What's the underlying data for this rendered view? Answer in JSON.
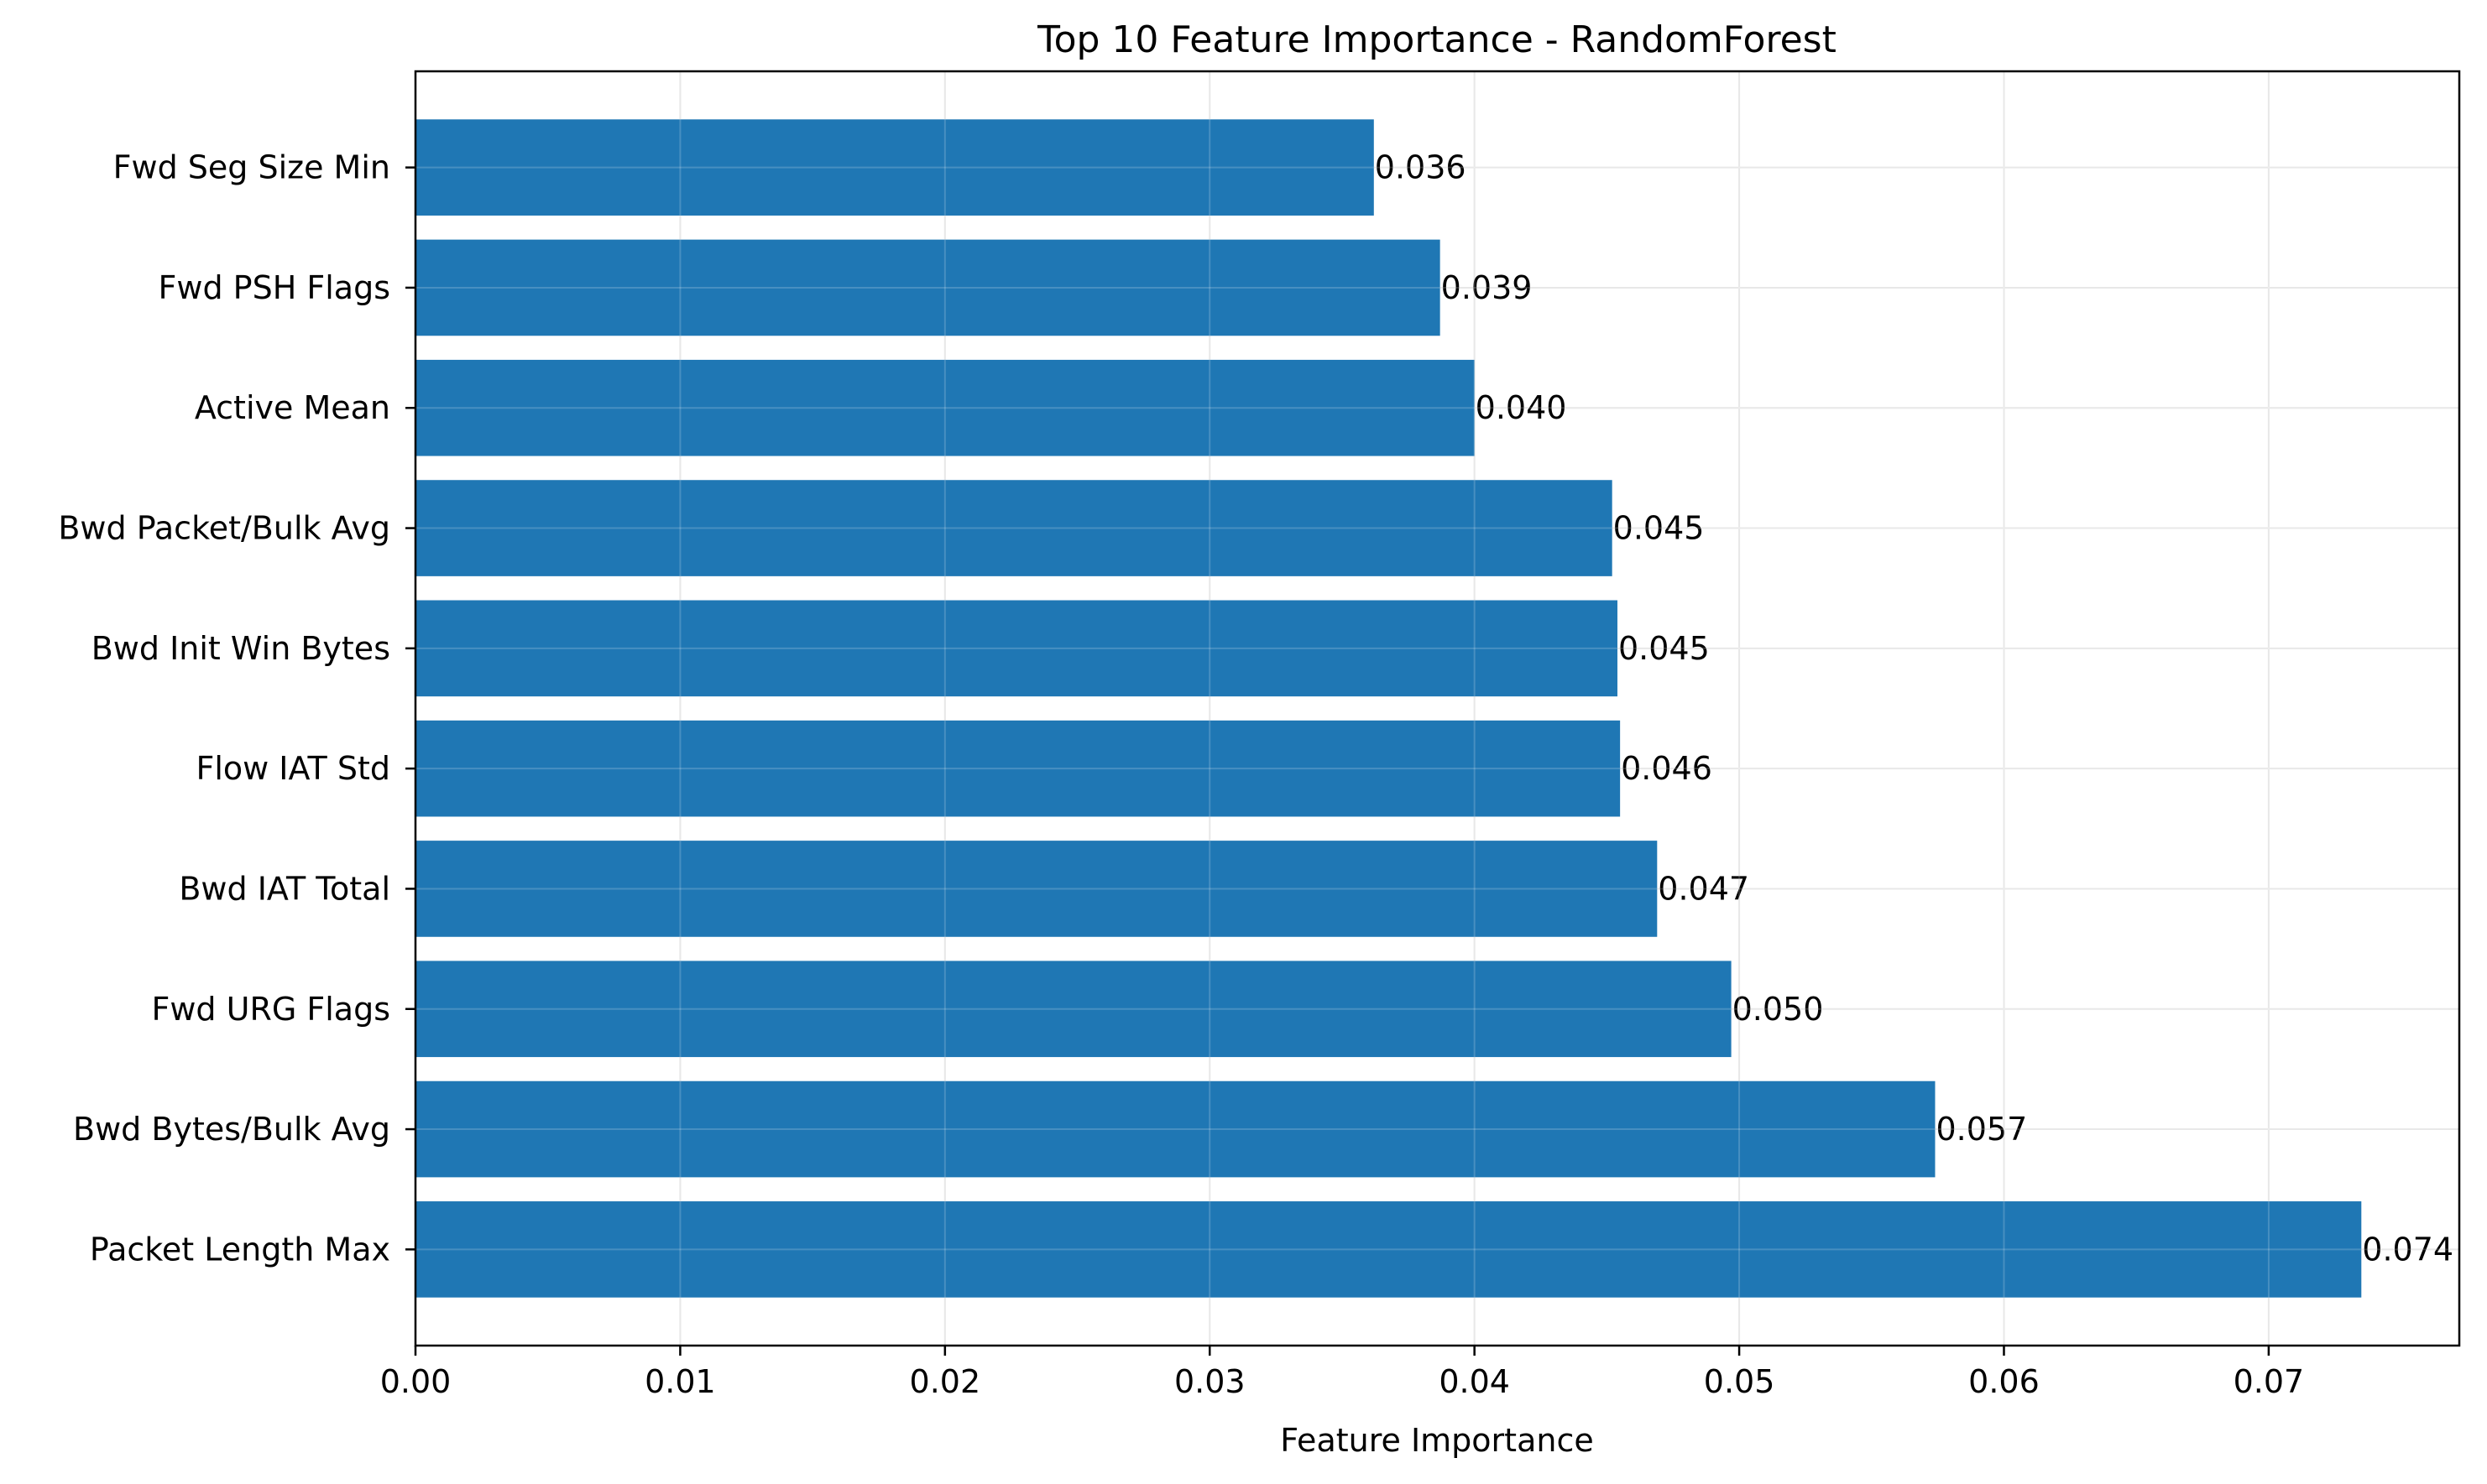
{
  "chart_data": {
    "type": "bar",
    "orientation": "horizontal",
    "title": "Top 10 Feature Importance - RandomForest",
    "xlabel": "Feature Importance",
    "ylabel": "",
    "categories": [
      "Packet Length Max",
      "Bwd Bytes/Bulk Avg",
      "Fwd URG Flags",
      "Bwd IAT Total",
      "Flow IAT Std",
      "Bwd Init Win Bytes",
      "Bwd Packet/Bulk Avg",
      "Active Mean",
      "Fwd PSH Flags",
      "Fwd Seg Size Min"
    ],
    "values": [
      0.0735,
      0.0574,
      0.0497,
      0.0469,
      0.0455,
      0.0454,
      0.0452,
      0.04,
      0.0387,
      0.0362
    ],
    "value_labels": [
      "0.074",
      "0.057",
      "0.050",
      "0.047",
      "0.046",
      "0.045",
      "0.045",
      "0.040",
      "0.039",
      "0.036"
    ],
    "xlim": [
      0,
      0.0772
    ],
    "xticks": [
      0.0,
      0.01,
      0.02,
      0.03,
      0.04,
      0.05,
      0.06,
      0.07
    ],
    "xtick_labels": [
      "0.00",
      "0.01",
      "0.02",
      "0.03",
      "0.04",
      "0.05",
      "0.06",
      "0.07"
    ],
    "grid": true,
    "colors": {
      "bar": "#1f77b4",
      "grid": "#e3e3e3",
      "axis": "#000000"
    }
  }
}
